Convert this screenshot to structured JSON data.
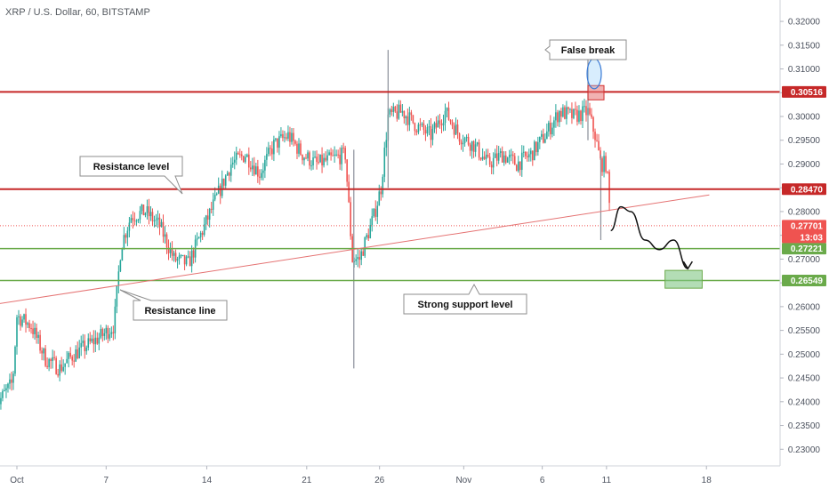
{
  "header": {
    "title": "XRP / U.S. Dollar, 60, BITSTAMP"
  },
  "colors": {
    "up": "#26a69a",
    "down": "#ef5350",
    "resistance": "#c62828",
    "support": "#6aaa4a",
    "trendline": "#e57373",
    "price_line": "#ef5350"
  },
  "chart_data": {
    "type": "candlestick",
    "title": "XRP / U.S. Dollar, 60, BITSTAMP",
    "xlabel": "",
    "ylabel": "",
    "ylim": [
      0.2265,
      0.3245
    ],
    "grid": false,
    "x_ticks": [
      "Oct",
      "7",
      "14",
      "21",
      "26",
      "Nov",
      "6",
      "11",
      "18"
    ],
    "y_ticks": [
      "0.32000",
      "0.31500",
      "0.31000",
      "0.30500",
      "0.30000",
      "0.29500",
      "0.29000",
      "0.28500",
      "0.28000",
      "0.27500",
      "0.27000",
      "0.26500",
      "0.26000",
      "0.25500",
      "0.25000",
      "0.24500",
      "0.24000",
      "0.23500",
      "0.23000"
    ],
    "horizontal_levels": [
      {
        "value": 0.30516,
        "label": "0.30516",
        "kind": "resistance"
      },
      {
        "value": 0.2847,
        "label": "0.28470",
        "kind": "resistance"
      },
      {
        "value": 0.27221,
        "label": "0.27221",
        "kind": "support"
      },
      {
        "value": 0.26549,
        "label": "0.26549",
        "kind": "support"
      }
    ],
    "current_price": {
      "value": 0.27701,
      "label": "0.27701",
      "countdown": "13:03"
    },
    "trendline": {
      "from": {
        "day": -1.5,
        "value": 0.2605
      },
      "to": {
        "day": 48.5,
        "value": 0.2835
      }
    },
    "annotations": [
      "Resistance level",
      "Resistance line",
      "False break",
      "Strong support level"
    ],
    "price_path": [
      {
        "day": -1.5,
        "value": 0.239
      },
      {
        "day": -0.8,
        "value": 0.242
      },
      {
        "day": -0.3,
        "value": 0.244
      },
      {
        "day": 0.0,
        "value": 0.258
      },
      {
        "day": 1.0,
        "value": 0.256
      },
      {
        "day": 2.0,
        "value": 0.249
      },
      {
        "day": 3.0,
        "value": 0.247
      },
      {
        "day": 4.0,
        "value": 0.25
      },
      {
        "day": 5.0,
        "value": 0.252
      },
      {
        "day": 6.0,
        "value": 0.254
      },
      {
        "day": 6.8,
        "value": 0.256
      },
      {
        "day": 7.3,
        "value": 0.273
      },
      {
        "day": 8.0,
        "value": 0.279
      },
      {
        "day": 9.0,
        "value": 0.28
      },
      {
        "day": 10.0,
        "value": 0.277
      },
      {
        "day": 11.0,
        "value": 0.27
      },
      {
        "day": 12.0,
        "value": 0.269
      },
      {
        "day": 13.0,
        "value": 0.276
      },
      {
        "day": 14.0,
        "value": 0.283
      },
      {
        "day": 15.0,
        "value": 0.29
      },
      {
        "day": 16.0,
        "value": 0.292
      },
      {
        "day": 17.0,
        "value": 0.288
      },
      {
        "day": 18.0,
        "value": 0.294
      },
      {
        "day": 19.0,
        "value": 0.296
      },
      {
        "day": 20.0,
        "value": 0.292
      },
      {
        "day": 21.0,
        "value": 0.29
      },
      {
        "day": 22.0,
        "value": 0.291
      },
      {
        "day": 23.0,
        "value": 0.292
      },
      {
        "day": 23.5,
        "value": 0.27
      },
      {
        "day": 24.0,
        "value": 0.27
      },
      {
        "day": 25.0,
        "value": 0.279
      },
      {
        "day": 25.5,
        "value": 0.285
      },
      {
        "day": 26.0,
        "value": 0.3
      },
      {
        "day": 27.0,
        "value": 0.301
      },
      {
        "day": 28.0,
        "value": 0.298
      },
      {
        "day": 29.0,
        "value": 0.296
      },
      {
        "day": 30.0,
        "value": 0.301
      },
      {
        "day": 31.0,
        "value": 0.296
      },
      {
        "day": 32.0,
        "value": 0.294
      },
      {
        "day": 33.0,
        "value": 0.29
      },
      {
        "day": 34.0,
        "value": 0.292
      },
      {
        "day": 35.0,
        "value": 0.29
      },
      {
        "day": 36.0,
        "value": 0.292
      },
      {
        "day": 37.0,
        "value": 0.296
      },
      {
        "day": 38.0,
        "value": 0.301
      },
      {
        "day": 39.0,
        "value": 0.3
      },
      {
        "day": 40.0,
        "value": 0.301
      },
      {
        "day": 40.5,
        "value": 0.296
      },
      {
        "day": 40.9,
        "value": 0.29
      },
      {
        "day": 41.3,
        "value": 0.29
      },
      {
        "day": 41.6,
        "value": 0.277
      }
    ],
    "spikes": [
      {
        "day": 23.6,
        "low": 0.247,
        "high": 0.293
      },
      {
        "day": 26.0,
        "low": 0.285,
        "high": 0.314
      },
      {
        "day": 40.0,
        "low": 0.295,
        "high": 0.313
      },
      {
        "day": 40.9,
        "low": 0.274,
        "high": 0.292
      }
    ],
    "projection": [
      {
        "day": 41.6,
        "value": 0.276
      },
      {
        "day": 42.3,
        "value": 0.281
      },
      {
        "day": 43.0,
        "value": 0.28
      },
      {
        "day": 44.0,
        "value": 0.274
      },
      {
        "day": 45.0,
        "value": 0.272
      },
      {
        "day": 46.0,
        "value": 0.274
      },
      {
        "day": 47.0,
        "value": 0.268
      }
    ],
    "false_break_zone": {
      "day": 40.5,
      "value_low": 0.3035,
      "value_high": 0.3065
    },
    "target_zone": {
      "day_start": 45.4,
      "day_end": 48.0,
      "value_low": 0.265,
      "value_high": 0.2665
    }
  }
}
